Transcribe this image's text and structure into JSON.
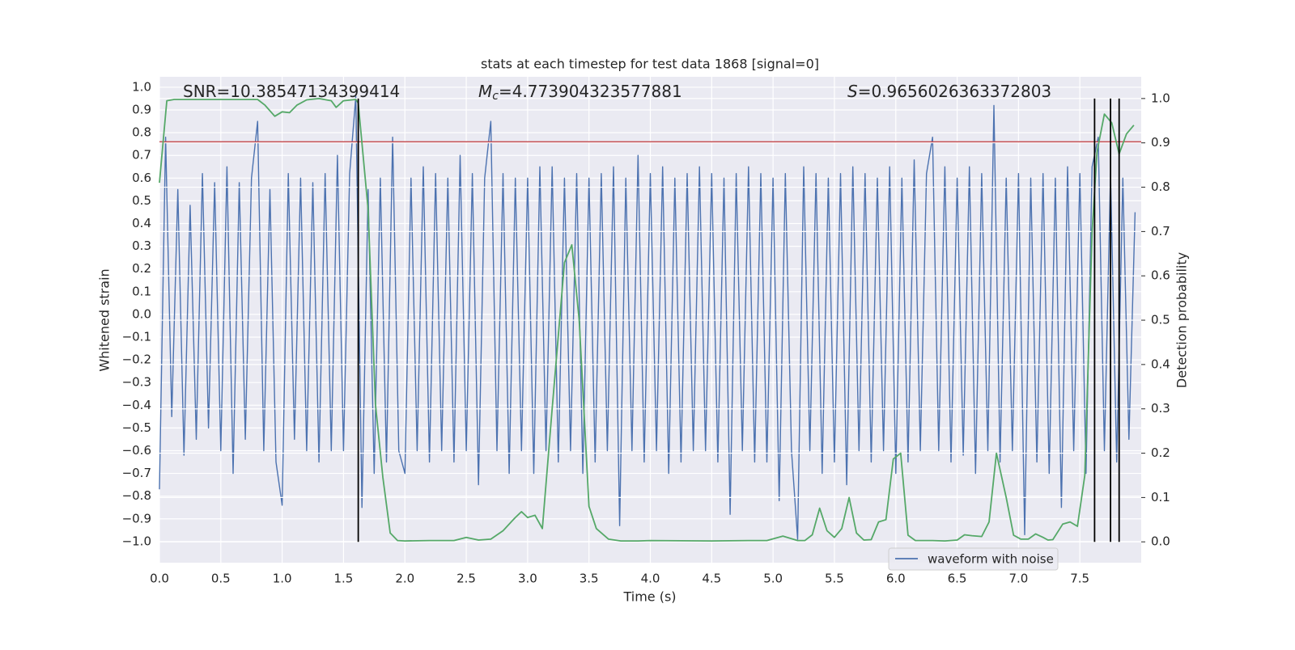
{
  "chart_data": {
    "type": "line",
    "title": "stats at each timestep for test data 1868 [signal=0]",
    "xlabel": "Time (s)",
    "ylabel": "Whitened strain",
    "y2label": "Detection probability",
    "annotations": [
      {
        "text": "SNR=10.38547134399414"
      },
      {
        "symbol": "M",
        "sub": "c",
        "text": "=4.773904323577881"
      },
      {
        "symbol": "S",
        "text": "=0.9656026363372803"
      }
    ],
    "legend": "lower right",
    "grid": true,
    "xlim": [
      0,
      8
    ],
    "ylim": [
      -1.093,
      1.046
    ],
    "y2lim": [
      -0.047,
      1.049
    ],
    "xticks": [
      {
        "value": 0,
        "label": "0.0"
      },
      {
        "value": 0.5,
        "label": "0.5"
      },
      {
        "value": 1,
        "label": "1.0"
      },
      {
        "value": 1.5,
        "label": "1.5"
      },
      {
        "value": 2,
        "label": "2.0"
      },
      {
        "value": 2.5,
        "label": "2.5"
      },
      {
        "value": 3,
        "label": "3.0"
      },
      {
        "value": 3.5,
        "label": "3.5"
      },
      {
        "value": 4,
        "label": "4.0"
      },
      {
        "value": 4.5,
        "label": "4.5"
      },
      {
        "value": 5,
        "label": "5.0"
      },
      {
        "value": 5.5,
        "label": "5.5"
      },
      {
        "value": 6,
        "label": "6.0"
      },
      {
        "value": 6.5,
        "label": "6.5"
      },
      {
        "value": 7,
        "label": "7.0"
      },
      {
        "value": 7.5,
        "label": "7.5"
      }
    ],
    "yticks": [
      {
        "value": -1,
        "label": "−1.0"
      },
      {
        "value": -0.9,
        "label": "−0.9"
      },
      {
        "value": -0.8,
        "label": "−0.8"
      },
      {
        "value": -0.7,
        "label": "−0.7"
      },
      {
        "value": -0.6,
        "label": "−0.6"
      },
      {
        "value": -0.5,
        "label": "−0.5"
      },
      {
        "value": -0.4,
        "label": "−0.4"
      },
      {
        "value": -0.3,
        "label": "−0.3"
      },
      {
        "value": -0.2,
        "label": "−0.2"
      },
      {
        "value": -0.1,
        "label": "−0.1"
      },
      {
        "value": 0,
        "label": "0.0"
      },
      {
        "value": 0.1,
        "label": "0.1"
      },
      {
        "value": 0.2,
        "label": "0.2"
      },
      {
        "value": 0.3,
        "label": "0.3"
      },
      {
        "value": 0.4,
        "label": "0.4"
      },
      {
        "value": 0.5,
        "label": "0.5"
      },
      {
        "value": 0.6,
        "label": "0.6"
      },
      {
        "value": 0.7,
        "label": "0.7"
      },
      {
        "value": 0.8,
        "label": "0.8"
      },
      {
        "value": 0.9,
        "label": "0.9"
      },
      {
        "value": 1,
        "label": "1.0"
      }
    ],
    "y2ticks": [
      {
        "value": 0,
        "label": "0.0"
      },
      {
        "value": 0.1,
        "label": "0.1"
      },
      {
        "value": 0.2,
        "label": "0.2"
      },
      {
        "value": 0.3,
        "label": "0.3"
      },
      {
        "value": 0.4,
        "label": "0.4"
      },
      {
        "value": 0.5,
        "label": "0.5"
      },
      {
        "value": 0.6,
        "label": "0.6"
      },
      {
        "value": 0.7,
        "label": "0.7"
      },
      {
        "value": 0.8,
        "label": "0.8"
      },
      {
        "value": 0.9,
        "label": "0.9"
      },
      {
        "value": 1,
        "label": "1.0"
      }
    ],
    "hline": {
      "y": 0.76,
      "color": "#c44e52"
    },
    "vlines": {
      "x": [
        1.62,
        7.62,
        7.75,
        7.82
      ],
      "ymin": 0,
      "ymax": 1,
      "axis": "y2",
      "color": "#000000"
    },
    "series": [
      {
        "name": "waveform with noise",
        "color": "#4c72b0",
        "x": [
          0,
          0.05,
          0.1,
          0.15,
          0.2,
          0.25,
          0.3,
          0.35,
          0.4,
          0.45,
          0.5,
          0.55,
          0.6,
          0.65,
          0.7,
          0.75,
          0.8,
          0.85,
          0.9,
          0.95,
          1,
          1.05,
          1.1,
          1.15,
          1.2,
          1.25,
          1.3,
          1.35,
          1.4,
          1.45,
          1.5,
          1.55,
          1.6,
          1.65,
          1.7,
          1.75,
          1.8,
          1.85,
          1.9,
          1.95,
          2,
          2.05,
          2.1,
          2.15,
          2.2,
          2.25,
          2.3,
          2.35,
          2.4,
          2.45,
          2.5,
          2.55,
          2.6,
          2.65,
          2.7,
          2.75,
          2.8,
          2.85,
          2.9,
          2.95,
          3,
          3.05,
          3.1,
          3.15,
          3.2,
          3.25,
          3.3,
          3.35,
          3.4,
          3.45,
          3.5,
          3.55,
          3.6,
          3.65,
          3.7,
          3.75,
          3.8,
          3.85,
          3.9,
          3.95,
          4,
          4.05,
          4.1,
          4.15,
          4.2,
          4.25,
          4.3,
          4.35,
          4.4,
          4.45,
          4.5,
          4.55,
          4.6,
          4.65,
          4.7,
          4.75,
          4.8,
          4.85,
          4.9,
          4.95,
          5,
          5.05,
          5.1,
          5.15,
          5.2,
          5.25,
          5.3,
          5.35,
          5.4,
          5.45,
          5.5,
          5.55,
          5.6,
          5.65,
          5.7,
          5.75,
          5.8,
          5.85,
          5.9,
          5.95,
          6,
          6.05,
          6.1,
          6.15,
          6.2,
          6.25,
          6.3,
          6.35,
          6.4,
          6.45,
          6.5,
          6.55,
          6.6,
          6.65,
          6.7,
          6.75,
          6.8,
          6.85,
          6.9,
          6.95,
          7,
          7.05,
          7.1,
          7.15,
          7.2,
          7.25,
          7.3,
          7.35,
          7.4,
          7.45,
          7.5,
          7.55,
          7.6,
          7.65,
          7.7,
          7.75,
          7.8,
          7.85,
          7.9,
          7.95
        ],
        "values": [
          -0.77,
          0.78,
          -0.45,
          0.55,
          -0.62,
          0.48,
          -0.55,
          0.62,
          -0.5,
          0.58,
          -0.6,
          0.65,
          -0.7,
          0.58,
          -0.55,
          0.6,
          0.85,
          -0.6,
          0.55,
          -0.65,
          -0.84,
          0.62,
          -0.55,
          0.6,
          -0.6,
          0.58,
          -0.65,
          0.62,
          -0.6,
          0.7,
          -0.6,
          0.62,
          0.96,
          -0.85,
          0.55,
          -0.7,
          0.6,
          -0.65,
          0.78,
          -0.6,
          -0.7,
          0.6,
          -0.6,
          0.65,
          -0.65,
          0.62,
          -0.6,
          0.6,
          -0.65,
          0.7,
          -0.6,
          0.62,
          -0.75,
          0.6,
          0.85,
          -0.6,
          0.62,
          -0.7,
          0.6,
          -0.6,
          0.6,
          -0.7,
          0.65,
          -0.6,
          0.65,
          -0.65,
          0.6,
          -0.6,
          0.62,
          -0.7,
          0.6,
          -0.65,
          0.62,
          -0.6,
          0.65,
          -0.93,
          0.6,
          -0.6,
          0.7,
          -0.65,
          0.62,
          -0.6,
          0.65,
          -0.7,
          0.6,
          -0.65,
          0.62,
          -0.6,
          0.65,
          -0.6,
          0.62,
          -0.65,
          0.6,
          -0.88,
          0.62,
          -0.6,
          0.65,
          -0.65,
          0.62,
          -0.65,
          0.6,
          -0.82,
          0.62,
          -0.6,
          -0.99,
          0.65,
          -0.6,
          0.62,
          -0.7,
          0.6,
          -0.65,
          0.62,
          -0.75,
          0.65,
          -0.6,
          0.62,
          -0.65,
          0.6,
          -0.6,
          0.65,
          -0.7,
          0.6,
          -0.65,
          0.68,
          -0.6,
          0.62,
          0.78,
          -0.6,
          0.65,
          -0.65,
          0.6,
          -0.62,
          0.65,
          -0.7,
          0.62,
          -0.6,
          0.92,
          -0.65,
          0.6,
          -0.6,
          0.62,
          -0.97,
          0.6,
          -0.65,
          0.62,
          -0.7,
          0.6,
          -0.85,
          0.65,
          -0.6,
          0.62,
          -0.7,
          0.65,
          0.78,
          -0.6,
          0.62,
          -0.65,
          0.6,
          -0.55,
          0.45
        ]
      },
      {
        "name": "detection probability",
        "color": "#55a868",
        "axis": "y2",
        "x": [
          0,
          0.06,
          0.12,
          0.3,
          0.5,
          0.8,
          0.86,
          0.94,
          1,
          1.06,
          1.12,
          1.2,
          1.3,
          1.4,
          1.44,
          1.5,
          1.6,
          1.62,
          1.7,
          1.76,
          1.82,
          1.88,
          1.94,
          2,
          2.2,
          2.4,
          2.5,
          2.6,
          2.7,
          2.8,
          2.9,
          2.95,
          3,
          3.06,
          3.12,
          3.2,
          3.3,
          3.36,
          3.42,
          3.5,
          3.56,
          3.66,
          3.76,
          3.9,
          4,
          4.5,
          4.8,
          4.95,
          5.08,
          5.2,
          5.26,
          5.32,
          5.38,
          5.44,
          5.5,
          5.56,
          5.62,
          5.68,
          5.74,
          5.8,
          5.86,
          5.92,
          5.98,
          6.04,
          6.1,
          6.16,
          6.3,
          6.4,
          6.5,
          6.56,
          6.62,
          6.7,
          6.76,
          6.82,
          6.9,
          6.96,
          7.02,
          7.08,
          7.14,
          7.2,
          7.24,
          7.28,
          7.36,
          7.42,
          7.48,
          7.54,
          7.6,
          7.64,
          7.7,
          7.76,
          7.82,
          7.88,
          7.94
        ],
        "values": [
          0.81,
          0.995,
          0.998,
          0.998,
          0.998,
          0.998,
          0.985,
          0.96,
          0.97,
          0.968,
          0.985,
          0.997,
          1,
          0.995,
          0.98,
          0.995,
          0.998,
          0.99,
          0.75,
          0.31,
          0.146,
          0.02,
          0.003,
          0.002,
          0.003,
          0.003,
          0.01,
          0.004,
          0.006,
          0.025,
          0.055,
          0.068,
          0.055,
          0.06,
          0.03,
          0.3,
          0.63,
          0.67,
          0.5,
          0.08,
          0.03,
          0.006,
          0.002,
          0.002,
          0.003,
          0.002,
          0.003,
          0.003,
          0.013,
          0.003,
          0.003,
          0.016,
          0.076,
          0.025,
          0.01,
          0.03,
          0.1,
          0.02,
          0.004,
          0.005,
          0.045,
          0.05,
          0.187,
          0.2,
          0.015,
          0.003,
          0.003,
          0.002,
          0.004,
          0.016,
          0.014,
          0.012,
          0.045,
          0.2,
          0.1,
          0.015,
          0.006,
          0.006,
          0.018,
          0.01,
          0.004,
          0.005,
          0.04,
          0.045,
          0.035,
          0.15,
          0.7,
          0.88,
          0.965,
          0.945,
          0.875,
          0.92,
          0.94
        ]
      }
    ]
  }
}
